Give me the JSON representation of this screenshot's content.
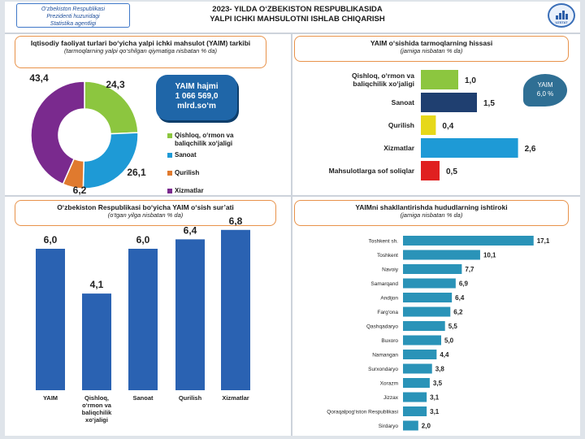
{
  "header": {
    "agency_lines": [
      "O‘zbekiston Respublikasi",
      "Prezidenti huzuridagi",
      "Statistika agentligi"
    ],
    "title_line1": "2023- YILDA O‘ZBEKISTON RESPUBLIKASIDA",
    "title_line2": "YALPI ICHKI MAHSULOTNI ISHLAB CHIQARISH",
    "logo_text": "UZSTAT"
  },
  "colors": {
    "agriculture": "#8cc63f",
    "industry": "#1e9ad6",
    "construction": "#e07a2e",
    "services": "#7a2a8e",
    "bar_blue": "#2a62b2",
    "navy": "#1f3f70",
    "yellow": "#e6d81a",
    "red": "#e02020",
    "teal": "#2a93b8",
    "orange_border": "#e8924a"
  },
  "panel1": {
    "title": "Iqtisodiy faoliyat turlari bo‘yicha yalpi ichki mahsulot (YAIM) tarkibi",
    "subtitle": "(tarmoqlarning yalpi qo‘shilgan qiymatiga nisbatan % da)",
    "yaim_label": "YAIM hajmi",
    "yaim_value": "1 066 569,0",
    "yaim_unit": "mlrd.so‘m"
  },
  "panel2": {
    "title": "YAIM o‘sishida tarmoqlarning hissasi",
    "subtitle": "(jamiga nisbatan % da)",
    "badge_label": "YAIM",
    "badge_value": "6,0 %"
  },
  "panel3": {
    "title": "O‘zbekiston Respublikasi bo‘yicha YAIM o‘sish sur’ati",
    "subtitle": "(o‘tgan yilga nisbatan % da)"
  },
  "panel4": {
    "title": "YAIMni shakllantirishda hududlarning ishtiroki",
    "subtitle": "(jamiga nisbatan % da)"
  },
  "chart_data": [
    {
      "type": "pie",
      "slices": [
        {
          "label": "Qishloq, o‘rmon va baliqchilik xo‘jaligi",
          "value": 24.3,
          "display": "24,3"
        },
        {
          "label": "Sanoat",
          "value": 26.1,
          "display": "26,1"
        },
        {
          "label": "Qurilish",
          "value": 6.2,
          "display": "6,2"
        },
        {
          "label": "Xizmatlar",
          "value": 43.4,
          "display": "43,4"
        }
      ]
    },
    {
      "type": "bar",
      "orientation": "horizontal",
      "categories": [
        "Qishloq, o‘rmon va baliqchilik xo‘jaligi",
        "Sanoat",
        "Qurilish",
        "Xizmatlar",
        "Mahsulotlarga sof soliqlar"
      ],
      "values": [
        1.0,
        1.5,
        0.4,
        2.6,
        0.5
      ],
      "labels": [
        "1,0",
        "1,5",
        "0,4",
        "2,6",
        "0,5"
      ]
    },
    {
      "type": "bar",
      "categories": [
        "YAIM",
        "Qishloq, o‘rmon va baliqchilik xo‘jaligi",
        "Sanoat",
        "Qurilish",
        "Xizmatlar"
      ],
      "values": [
        6.0,
        4.1,
        6.0,
        6.4,
        6.8
      ],
      "labels": [
        "6,0",
        "4,1",
        "6,0",
        "6,4",
        "6,8"
      ]
    },
    {
      "type": "bar",
      "orientation": "horizontal",
      "categories": [
        "Toshkent sh.",
        "Toshkent",
        "Navoiy",
        "Samarqand",
        "Andijon",
        "Farg‘ona",
        "Qashqadaryo",
        "Buxoro",
        "Namangan",
        "Surxondaryo",
        "Xorazm",
        "Jizzax",
        "Qoraqalpog‘iston Respublikasi",
        "Sirdaryo"
      ],
      "values": [
        17.1,
        10.1,
        7.7,
        6.9,
        6.4,
        6.2,
        5.5,
        5.0,
        4.4,
        3.8,
        3.5,
        3.1,
        3.1,
        2.0
      ],
      "labels": [
        "17,1",
        "10,1",
        "7,7",
        "6,9",
        "6,4",
        "6,2",
        "5,5",
        "5,0",
        "4,4",
        "3,8",
        "3,5",
        "3,1",
        "3,1",
        "2,0"
      ]
    }
  ]
}
